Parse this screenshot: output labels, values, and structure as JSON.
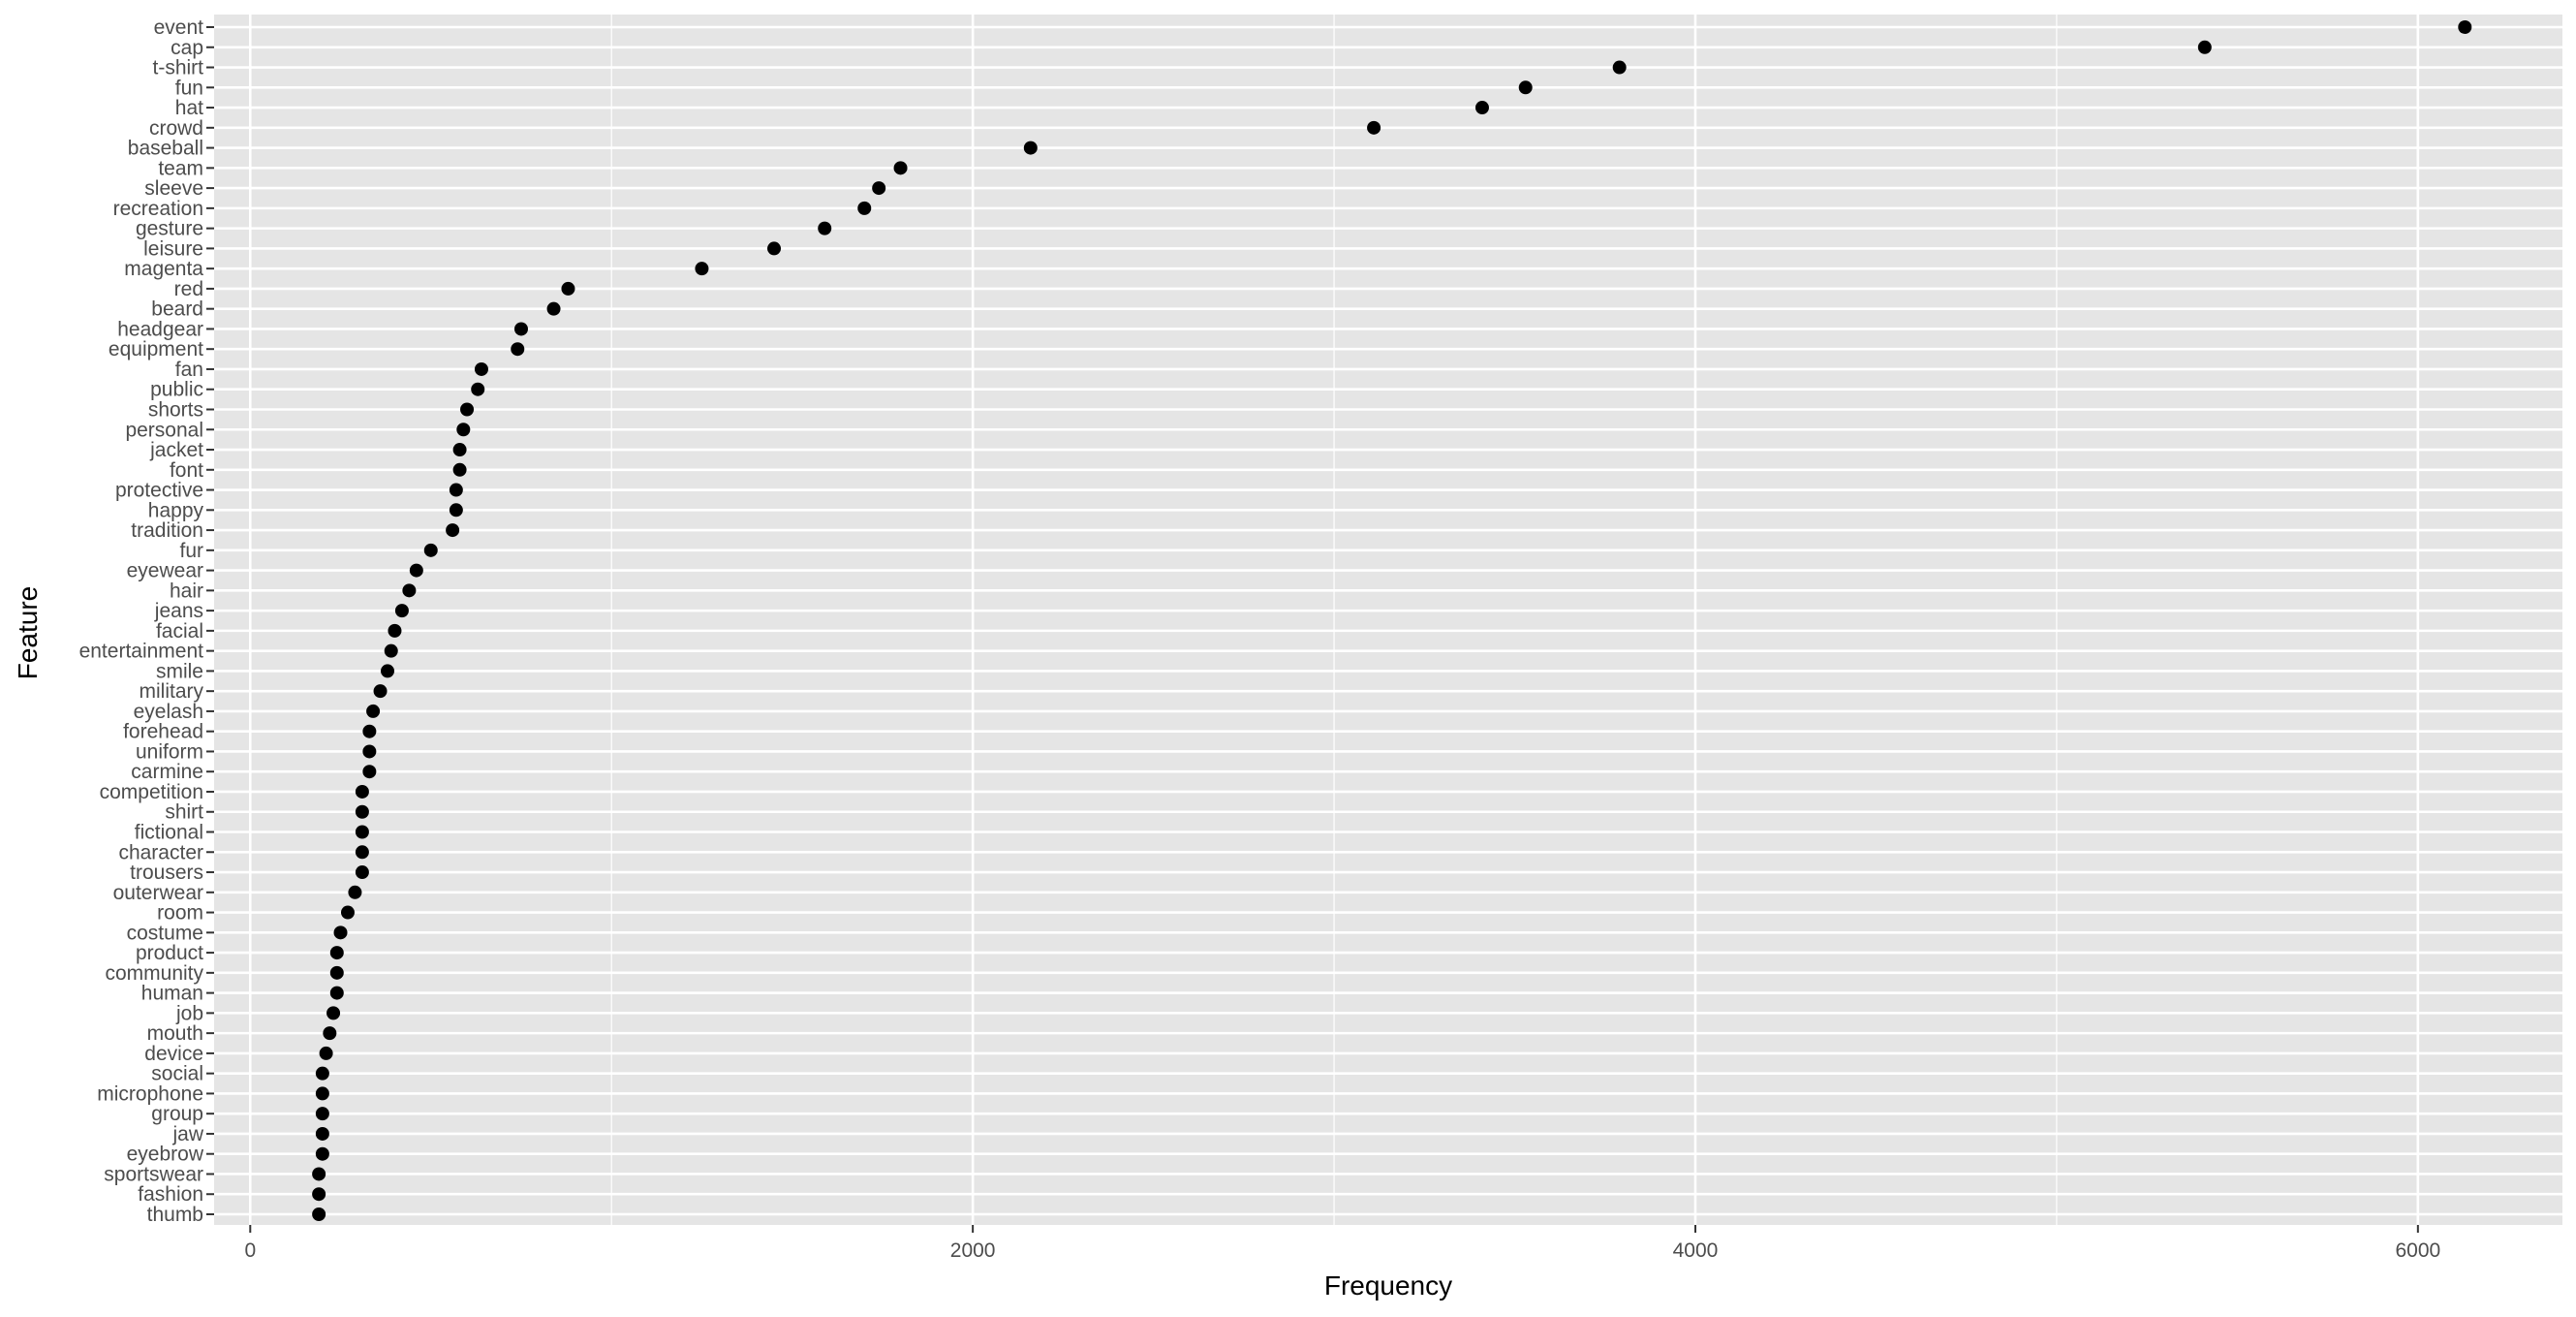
{
  "chart_data": {
    "type": "scatter",
    "title": "",
    "xlabel": "Frequency",
    "ylabel": "Feature",
    "xlim": [
      -100,
      6400
    ],
    "x_ticks": [
      0,
      2000,
      4000,
      6000
    ],
    "x_minor_ticks": [
      1000,
      3000,
      5000
    ],
    "grid": true,
    "panel_background": "#e5e5e5",
    "grid_color": "#ffffff",
    "point_color": "#000000",
    "categories": [
      "event",
      "cap",
      "t-shirt",
      "fun",
      "hat",
      "crowd",
      "baseball",
      "team",
      "sleeve",
      "recreation",
      "gesture",
      "leisure",
      "magenta",
      "red",
      "beard",
      "headgear",
      "equipment",
      "fan",
      "public",
      "shorts",
      "personal",
      "jacket",
      "font",
      "protective",
      "happy",
      "tradition",
      "fur",
      "eyewear",
      "hair",
      "jeans",
      "facial",
      "entertainment",
      "smile",
      "military",
      "eyelash",
      "forehead",
      "uniform",
      "carmine",
      "competition",
      "shirt",
      "fictional",
      "character",
      "trousers",
      "outerwear",
      "room",
      "costume",
      "product",
      "community",
      "human",
      "job",
      "mouth",
      "device",
      "social",
      "microphone",
      "group",
      "jaw",
      "eyebrow",
      "sportswear",
      "fashion",
      "thumb"
    ],
    "values": [
      6130,
      5410,
      3790,
      3530,
      3410,
      3110,
      2160,
      1800,
      1740,
      1700,
      1590,
      1450,
      1250,
      880,
      840,
      750,
      740,
      640,
      630,
      600,
      590,
      580,
      580,
      570,
      570,
      560,
      500,
      460,
      440,
      420,
      400,
      390,
      380,
      360,
      340,
      330,
      330,
      330,
      310,
      310,
      310,
      310,
      310,
      290,
      270,
      250,
      240,
      240,
      240,
      230,
      220,
      210,
      200,
      200,
      200,
      200,
      200,
      190,
      190,
      190
    ]
  }
}
